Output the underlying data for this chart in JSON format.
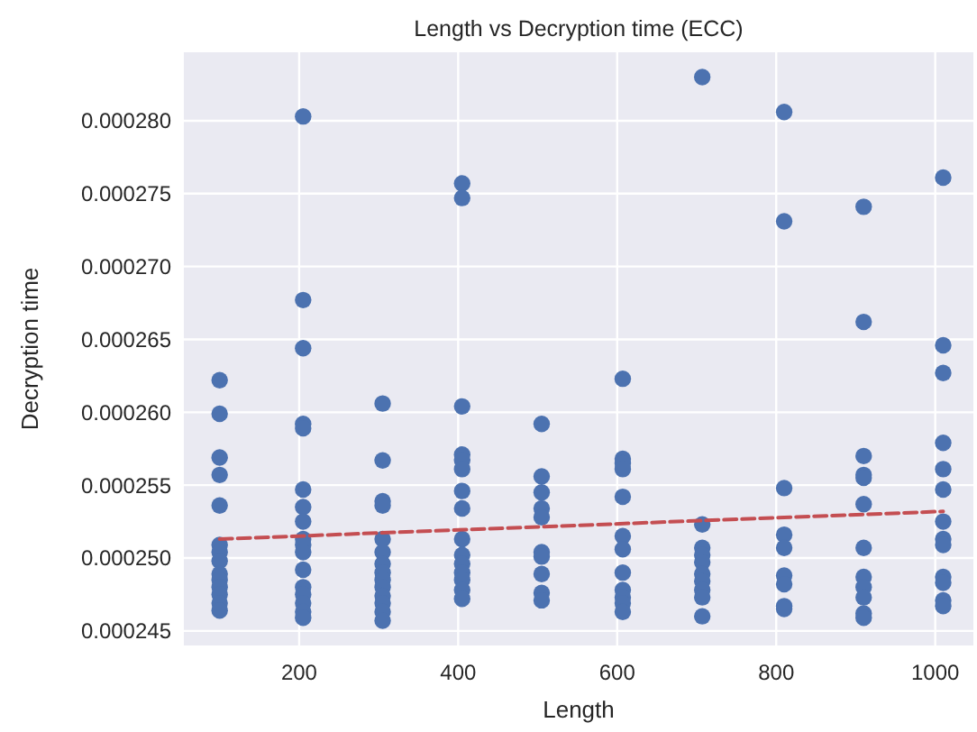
{
  "chart_data": {
    "type": "scatter",
    "title": "Length vs Decryption time (ECC)",
    "xlabel": "Length",
    "ylabel": "Decryption time",
    "grid": true,
    "xlim": [
      55,
      1048
    ],
    "ylim": [
      0.000244,
      0.0002847
    ],
    "xticks": [
      200,
      400,
      600,
      800,
      1000
    ],
    "yticks": [
      {
        "value": 0.000245,
        "label": "0.000245"
      },
      {
        "value": 0.00025,
        "label": "0.000250"
      },
      {
        "value": 0.000255,
        "label": "0.000255"
      },
      {
        "value": 0.00026,
        "label": "0.000260"
      },
      {
        "value": 0.000265,
        "label": "0.000265"
      },
      {
        "value": 0.00027,
        "label": "0.000270"
      },
      {
        "value": 0.000275,
        "label": "0.000275"
      },
      {
        "value": 0.00028,
        "label": "0.000280"
      }
    ],
    "series": [
      {
        "type": "scatter",
        "marker": "circle",
        "color": "#4c72b0",
        "x": [
          100,
          100,
          100,
          100,
          100,
          100,
          100,
          100,
          100,
          100,
          100,
          100,
          100,
          100,
          205,
          205,
          205,
          205,
          205,
          205,
          205,
          205,
          205,
          205,
          205,
          205,
          205,
          205,
          205,
          205,
          205,
          305,
          305,
          305,
          305,
          305,
          305,
          305,
          305,
          305,
          305,
          305,
          305,
          305,
          305,
          405,
          405,
          405,
          405,
          405,
          405,
          405,
          405,
          405,
          405,
          405,
          405,
          405,
          405,
          405,
          505,
          505,
          505,
          505,
          505,
          505,
          505,
          505,
          505,
          505,
          607,
          607,
          607,
          607,
          607,
          607,
          607,
          607,
          607,
          607,
          607,
          607,
          707,
          707,
          707,
          707,
          707,
          707,
          707,
          707,
          707,
          707,
          810,
          810,
          810,
          810,
          810,
          810,
          810,
          810,
          810,
          910,
          910,
          910,
          910,
          910,
          910,
          910,
          910,
          910,
          910,
          910,
          910,
          1010,
          1010,
          1010,
          1010,
          1010,
          1010,
          1010,
          1010,
          1010,
          1010,
          1010,
          1010,
          1010
        ],
        "values": [
          0.0002622,
          0.0002599,
          0.0002569,
          0.0002557,
          0.0002536,
          0.0002509,
          0.0002504,
          0.0002498,
          0.0002489,
          0.0002485,
          0.000248,
          0.0002475,
          0.0002469,
          0.0002464,
          0.0002803,
          0.0002677,
          0.0002644,
          0.0002592,
          0.0002589,
          0.0002547,
          0.0002535,
          0.0002525,
          0.0002513,
          0.0002509,
          0.0002504,
          0.0002492,
          0.000248,
          0.0002475,
          0.0002469,
          0.0002463,
          0.0002459,
          0.0002606,
          0.0002567,
          0.0002539,
          0.0002536,
          0.0002513,
          0.0002504,
          0.0002496,
          0.000249,
          0.0002485,
          0.000248,
          0.0002474,
          0.0002469,
          0.0002463,
          0.0002457,
          0.0002757,
          0.0002747,
          0.0002604,
          0.0002571,
          0.0002567,
          0.0002561,
          0.0002546,
          0.0002534,
          0.0002513,
          0.0002502,
          0.0002496,
          0.000249,
          0.0002485,
          0.0002478,
          0.0002472,
          0.0002592,
          0.0002556,
          0.0002545,
          0.0002534,
          0.0002528,
          0.0002504,
          0.0002501,
          0.0002489,
          0.0002476,
          0.0002471,
          0.0002623,
          0.0002568,
          0.0002565,
          0.0002561,
          0.0002542,
          0.0002515,
          0.0002506,
          0.000249,
          0.0002478,
          0.0002473,
          0.0002469,
          0.0002463,
          0.000283,
          0.0002523,
          0.0002507,
          0.0002502,
          0.0002497,
          0.0002489,
          0.0002484,
          0.0002478,
          0.0002473,
          0.000246,
          0.0002806,
          0.0002731,
          0.0002548,
          0.0002516,
          0.0002507,
          0.0002488,
          0.0002482,
          0.0002467,
          0.0002465,
          0.0002741,
          0.0002662,
          0.000257,
          0.0002557,
          0.0002555,
          0.0002537,
          0.0002507,
          0.0002487,
          0.000248,
          0.0002473,
          0.0002462,
          0.0002459,
          0.0002761,
          0.0002646,
          0.0002627,
          0.0002579,
          0.0002561,
          0.0002547,
          0.0002525,
          0.0002513,
          0.0002509,
          0.0002487,
          0.0002483,
          0.0002471,
          0.0002467
        ]
      },
      {
        "type": "line",
        "color": "#c44e52",
        "line_style": "dashed",
        "marker": "none",
        "x": [
          100,
          1010
        ],
        "values": [
          0.0002513,
          0.0002532
        ]
      }
    ]
  }
}
